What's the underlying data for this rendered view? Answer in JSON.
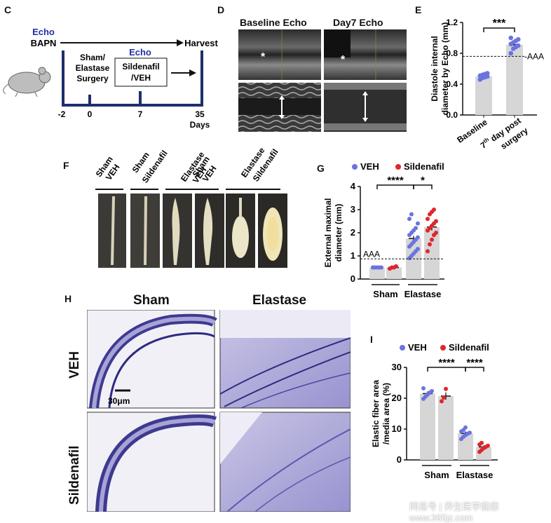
{
  "colors": {
    "veh": "#6b73e0",
    "sil": "#e0262e",
    "bar": "#d6d6d6",
    "timeline": "#1f2f6b",
    "echo": "#1f2fa8"
  },
  "panel_c": {
    "letter": "C",
    "echo_left": "Echo",
    "bapn": "BAPN",
    "harvest": "Harvest",
    "sham_line1": "Sham/",
    "sham_line2": "Elastase",
    "sham_line3": "Surgery",
    "echo_mid": "Echo",
    "sild_line1": "Sildenafil",
    "sild_line2": "/VEH",
    "ticks": [
      "-2",
      "0",
      "7",
      "35"
    ],
    "days": "Days"
  },
  "panel_d": {
    "letter": "D",
    "baseline": "Baseline Echo",
    "day7": "Day7 Echo",
    "star": "*"
  },
  "panel_f": {
    "letter": "F",
    "labels": [
      [
        "Sham",
        "VEH"
      ],
      [
        "Sham",
        "Sildenafil"
      ],
      [
        "Elastase",
        "VEH"
      ],
      [
        "Elastase",
        "Sildenafil"
      ]
    ]
  },
  "panel_h": {
    "letter": "H",
    "sham": "Sham",
    "elastase": "Elastase",
    "veh": "VEH",
    "sildenafil": "Sildenafil",
    "scale": "30μm"
  },
  "panel_i_letter": "I",
  "panel_g_letter": "G",
  "panel_e_letter": "E",
  "watermark": "网易号 | 养生医学健康  www.365jz.com",
  "chart_data": [
    {
      "panel": "E",
      "type": "bar",
      "categories": [
        "Baseline",
        "7th day post surgery"
      ],
      "category_display": [
        [
          "Baseline"
        ],
        [
          "7",
          "th",
          " day post",
          "surgery"
        ]
      ],
      "values": [
        0.5,
        0.91
      ],
      "errors": [
        0.02,
        0.03
      ],
      "points": [
        [
          0.46,
          0.48,
          0.49,
          0.5,
          0.51,
          0.52,
          0.53,
          0.54
        ],
        [
          0.8,
          0.86,
          0.88,
          0.9,
          0.92,
          0.94,
          0.96,
          0.98,
          1.0
        ]
      ],
      "ylabel_lines": [
        "Diastole internal",
        "diameter by Echo (mm)"
      ],
      "ylim": [
        0,
        1.2
      ],
      "yticks": [
        "0.0",
        "0.4",
        "0.8",
        "1.2"
      ],
      "threshold": 0.76,
      "threshold_label": "AAA",
      "significance": "***"
    },
    {
      "panel": "G",
      "type": "bar",
      "legend": [
        "VEH",
        "Sildenafil"
      ],
      "groups": [
        "Sham",
        "Elastase"
      ],
      "series": [
        {
          "name": "VEH",
          "values": [
            0.5,
            1.75
          ],
          "errors": [
            0.02,
            0.12
          ],
          "points": [
            [
              0.5,
              0.5,
              0.5,
              0.5,
              0.5,
              0.5
            ],
            [
              0.9,
              1.0,
              1.1,
              1.2,
              1.3,
              1.4,
              1.5,
              1.6,
              1.7,
              1.8,
              1.9,
              2.0,
              2.1,
              2.2,
              2.4,
              2.6,
              2.8
            ]
          ]
        },
        {
          "name": "Sildenafil",
          "values": [
            0.5,
            2.25
          ],
          "errors": [
            0.02,
            0.15
          ],
          "points": [
            [
              0.45,
              0.5,
              0.5,
              0.55
            ],
            [
              1.2,
              1.5,
              1.7,
              1.9,
              2.0,
              2.1,
              2.2,
              2.3,
              2.4,
              2.5,
              2.6,
              2.8,
              2.9,
              3.0
            ]
          ]
        }
      ],
      "ylabel_lines": [
        "External maximal",
        "diameter (mm)"
      ],
      "ylim": [
        0,
        4
      ],
      "yticks": [
        "0",
        "1",
        "2",
        "3",
        "4"
      ],
      "threshold": 0.87,
      "threshold_label": "AAA",
      "significance": [
        "****",
        "*"
      ]
    },
    {
      "panel": "I",
      "type": "bar",
      "legend": [
        "VEH",
        "Sildenafil"
      ],
      "groups": [
        "Sham",
        "Elastase"
      ],
      "series": [
        {
          "name": "VEH",
          "values": [
            21.5,
            8.6
          ],
          "errors": [
            0.7,
            0.6
          ],
          "points": [
            [
              19.8,
              20.5,
              21.2,
              21.8,
              22.3,
              23.2
            ],
            [
              6.8,
              7.5,
              8.0,
              8.5,
              8.8,
              9.2,
              9.7,
              10.5
            ]
          ]
        },
        {
          "name": "Sildenafil",
          "values": [
            20.7,
            4.2
          ],
          "errors": [
            1.2,
            0.5
          ],
          "points": [
            [
              19.0,
              20.2,
              23.0
            ],
            [
              2.6,
              3.2,
              3.8,
              4.2,
              4.6,
              5.0,
              5.5
            ]
          ]
        }
      ],
      "ylabel_lines": [
        "Elastic fiber area",
        "/media area (%)"
      ],
      "ylim": [
        0,
        30
      ],
      "yticks": [
        "0",
        "10",
        "20",
        "30"
      ],
      "significance": [
        "****",
        "****"
      ]
    }
  ]
}
